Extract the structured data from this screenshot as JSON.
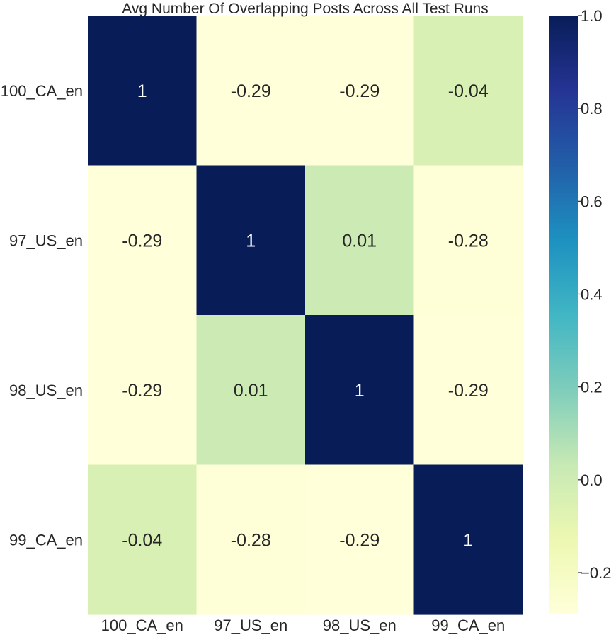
{
  "chart_data": {
    "type": "heatmap",
    "title": "Avg Number Of Overlapping Posts Across All Test Runs",
    "row_labels": [
      "100_CA_en",
      "97_US_en",
      "98_US_en",
      "99_CA_en"
    ],
    "col_labels": [
      "100_CA_en",
      "97_US_en",
      "98_US_en",
      "99_CA_en"
    ],
    "values": [
      [
        1,
        -0.29,
        -0.29,
        -0.04
      ],
      [
        -0.29,
        1,
        0.01,
        -0.28
      ],
      [
        -0.29,
        0.01,
        1,
        -0.29
      ],
      [
        -0.04,
        -0.28,
        -0.29,
        1
      ]
    ],
    "cell_labels": [
      [
        "1",
        "-0.29",
        "-0.29",
        "-0.04"
      ],
      [
        "-0.29",
        "1",
        "0.01",
        "-0.28"
      ],
      [
        "-0.29",
        "0.01",
        "1",
        "-0.29"
      ],
      [
        "-0.04",
        "-0.28",
        "-0.29",
        "1"
      ]
    ],
    "colormap": "YlGnBu",
    "colormap_stops": [
      "#ffffd9",
      "#edf8b1",
      "#c7e9b4",
      "#7fcdbb",
      "#41b6c4",
      "#1d91c0",
      "#225ea8",
      "#253494",
      "#081d58"
    ],
    "vmin": -0.29,
    "vmax": 1.0,
    "colorbar_ticks": [
      1.0,
      0.8,
      0.6,
      0.4,
      0.2,
      0.0,
      -0.2
    ],
    "colorbar_tick_labels": [
      "1.0",
      "0.8",
      "0.6",
      "0.4",
      "0.2",
      "0.0",
      "−0.2"
    ],
    "text_color_light": "#ffffff",
    "text_color_dark": "#262626"
  }
}
